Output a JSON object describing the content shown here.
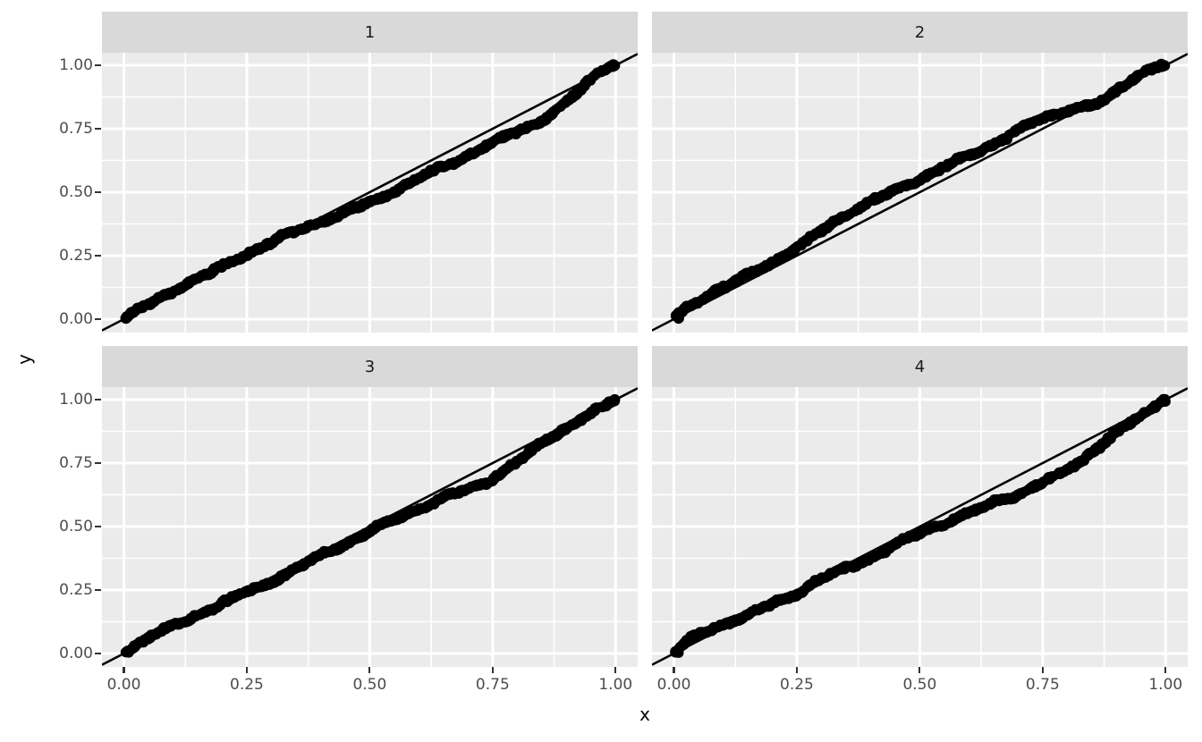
{
  "chart_data": {
    "type": "scatter",
    "title": "",
    "xlabel": "x",
    "ylabel": "y",
    "x_range": [
      -0.045,
      1.045
    ],
    "y_range": [
      -0.05,
      1.05
    ],
    "x_tick_values": [
      0,
      0.25,
      0.5,
      0.75,
      1
    ],
    "x_tick_labels": [
      "0.00",
      "0.25",
      "0.50",
      "0.75",
      "1.00"
    ],
    "y_tick_values": [
      0,
      0.25,
      0.5,
      0.75,
      1
    ],
    "y_tick_labels": [
      "0.00",
      "0.25",
      "0.50",
      "0.75",
      "1.00"
    ],
    "minor_tick_values": [
      0.125,
      0.375,
      0.625,
      0.875
    ],
    "grid": {
      "major": true,
      "minor": true
    },
    "legend": "none",
    "reference_line": {
      "slope": 1,
      "intercept": 0
    },
    "points_per_facet": 460,
    "facets": [
      {
        "label": "1",
        "deviation_profile": [
          [
            0,
            0.002
          ],
          [
            0.05,
            0.01
          ],
          [
            0.1,
            0.014
          ],
          [
            0.15,
            0.012
          ],
          [
            0.2,
            0.008
          ],
          [
            0.25,
            0.004
          ],
          [
            0.3,
            -0.002
          ],
          [
            0.35,
            -0.01
          ],
          [
            0.4,
            -0.02
          ],
          [
            0.45,
            -0.03
          ],
          [
            0.5,
            -0.04
          ],
          [
            0.55,
            -0.046
          ],
          [
            0.6,
            -0.051
          ],
          [
            0.65,
            -0.055
          ],
          [
            0.7,
            -0.058
          ],
          [
            0.75,
            -0.06
          ],
          [
            0.8,
            -0.062
          ],
          [
            0.85,
            -0.065
          ],
          [
            0.88,
            -0.058
          ],
          [
            0.91,
            -0.042
          ],
          [
            0.94,
            -0.02
          ],
          [
            0.97,
            0.005
          ],
          [
            1,
            0.002
          ]
        ]
      },
      {
        "label": "2",
        "deviation_profile": [
          [
            0,
            0.004
          ],
          [
            0.04,
            0.025
          ],
          [
            0.08,
            0.03
          ],
          [
            0.12,
            0.026
          ],
          [
            0.16,
            0.028
          ],
          [
            0.2,
            0.031
          ],
          [
            0.24,
            0.035
          ],
          [
            0.28,
            0.042
          ],
          [
            0.32,
            0.06
          ],
          [
            0.36,
            0.07
          ],
          [
            0.4,
            0.066
          ],
          [
            0.45,
            0.061
          ],
          [
            0.5,
            0.059
          ],
          [
            0.55,
            0.054
          ],
          [
            0.6,
            0.05
          ],
          [
            0.65,
            0.045
          ],
          [
            0.7,
            0.04
          ],
          [
            0.75,
            0.034
          ],
          [
            0.8,
            0.02
          ],
          [
            0.84,
            -0.005
          ],
          [
            0.87,
            -0.02
          ],
          [
            0.9,
            -0.005
          ],
          [
            0.93,
            0.012
          ],
          [
            0.96,
            0.012
          ],
          [
            1,
            0.004
          ]
        ]
      },
      {
        "label": "3",
        "deviation_profile": [
          [
            0,
            0.002
          ],
          [
            0.05,
            0.008
          ],
          [
            0.1,
            0.002
          ],
          [
            0.15,
            -0.004
          ],
          [
            0.2,
            -0.008
          ],
          [
            0.25,
            -0.012
          ],
          [
            0.3,
            -0.015
          ],
          [
            0.35,
            -0.012
          ],
          [
            0.4,
            -0.01
          ],
          [
            0.45,
            -0.012
          ],
          [
            0.5,
            -0.015
          ],
          [
            0.55,
            -0.018
          ],
          [
            0.6,
            -0.025
          ],
          [
            0.65,
            -0.035
          ],
          [
            0.7,
            -0.045
          ],
          [
            0.74,
            -0.055
          ],
          [
            0.78,
            -0.05
          ],
          [
            0.82,
            -0.035
          ],
          [
            0.86,
            -0.015
          ],
          [
            0.9,
            -0.008
          ],
          [
            0.95,
            -0.004
          ],
          [
            1,
            0.001
          ]
        ]
      },
      {
        "label": "4",
        "deviation_profile": [
          [
            0,
            0.003
          ],
          [
            0.03,
            0.018
          ],
          [
            0.06,
            0.022
          ],
          [
            0.1,
            0.012
          ],
          [
            0.15,
            0.002
          ],
          [
            0.2,
            -0.005
          ],
          [
            0.25,
            -0.015
          ],
          [
            0.3,
            -0.01
          ],
          [
            0.35,
            -0.018
          ],
          [
            0.4,
            -0.022
          ],
          [
            0.45,
            -0.028
          ],
          [
            0.5,
            -0.03
          ],
          [
            0.55,
            -0.04
          ],
          [
            0.6,
            -0.05
          ],
          [
            0.65,
            -0.06
          ],
          [
            0.7,
            -0.07
          ],
          [
            0.75,
            -0.075
          ],
          [
            0.79,
            -0.078
          ],
          [
            0.83,
            -0.065
          ],
          [
            0.87,
            -0.05
          ],
          [
            0.91,
            -0.03
          ],
          [
            0.95,
            -0.012
          ],
          [
            0.98,
            -0.003
          ],
          [
            1,
            0.002
          ]
        ]
      }
    ],
    "style": {
      "plot_bg": "#FFFFFF",
      "panel_bg": "#EBEBEB",
      "strip_bg": "#D9D9D9",
      "grid_color": "#FFFFFF",
      "tick_color": "#333333",
      "tick_label_color": "#4D4D4D",
      "strip_text_color": "#1A1A1A",
      "axis_title_color": "#000000",
      "point_color": "#000000",
      "line_color": "#000000"
    }
  }
}
